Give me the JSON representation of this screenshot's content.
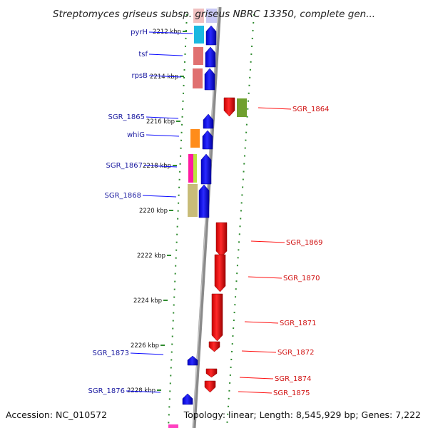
{
  "title": "Streptomyces griseus subsp. griseus NBRC 13350, complete gen...",
  "footer": {
    "accession": "Accession: NC_010572",
    "summary": "Topology: linear; Length: 8,545,929 bp; Genes: 7,222"
  },
  "colors": {
    "forward": "#0a0aff",
    "reverse": "#ff1010",
    "forward_label": "#1a1aa0",
    "reverse_label": "#d01010",
    "tick": "#2e8b2e",
    "backbone": "#8a8a8a"
  },
  "ticks": [
    {
      "label": "2212 kbp"
    },
    {
      "label": "2214 kbp"
    },
    {
      "label": "2216 kbp"
    },
    {
      "label": "2218 kbp"
    },
    {
      "label": "2220 kbp"
    },
    {
      "label": "2222 kbp"
    },
    {
      "label": "2224 kbp"
    },
    {
      "label": "2226 kbp"
    },
    {
      "label": "2228 kbp"
    }
  ],
  "forward_genes": [
    {
      "name": "pyrH"
    },
    {
      "name": "tsf"
    },
    {
      "name": "rpsB"
    },
    {
      "name": "SGR_1865"
    },
    {
      "name": "whiG"
    },
    {
      "name": "SGR_1867"
    },
    {
      "name": "SGR_1868"
    },
    {
      "name": "SGR_1873"
    },
    {
      "name": "SGR_1876"
    }
  ],
  "reverse_genes": [
    {
      "name": "SGR_1864"
    },
    {
      "name": "SGR_1869"
    },
    {
      "name": "SGR_1870"
    },
    {
      "name": "SGR_1871"
    },
    {
      "name": "SGR_1872"
    },
    {
      "name": "SGR_1874"
    },
    {
      "name": "SGR_1875"
    }
  ]
}
